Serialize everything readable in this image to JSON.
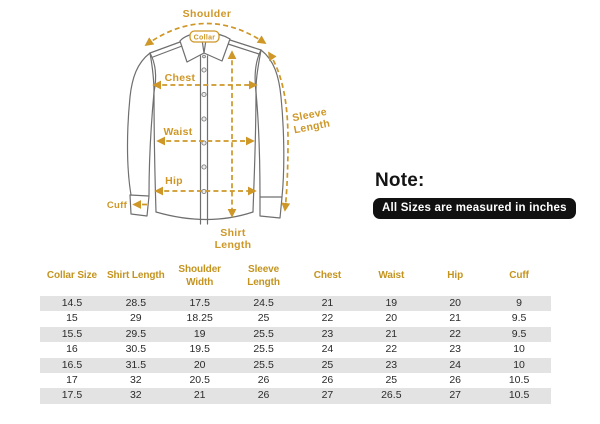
{
  "theme": {
    "accent_gold": "#CE9727",
    "table_header_gold": "#C4941F",
    "row_alt_bg": "#E3E3E3",
    "note_badge_bg": "#111111",
    "outline_gray": "#6F6F6F",
    "cell_text": "#2B2B2B",
    "note_text": "#141414"
  },
  "diagram": {
    "labels": {
      "shoulder": "Shoulder",
      "collar": "Collar",
      "chest": "Chest",
      "waist": "Waist",
      "hip": "Hip",
      "cuff": "Cuff",
      "shirt_length_line1": "Shirt",
      "shirt_length_line2": "Length",
      "sleeve_length_line1": "Sleeve",
      "sleeve_length_line2": "Length"
    }
  },
  "note": {
    "title": "Note:",
    "badge": "All Sizes are measured in inches"
  },
  "size_table": {
    "columns": [
      "Collar Size",
      "Shirt Length",
      "Shoulder Width",
      "Sleeve Length",
      "Chest",
      "Waist",
      "Hip",
      "Cuff"
    ],
    "rows": [
      [
        "14.5",
        "28.5",
        "17.5",
        "24.5",
        "21",
        "19",
        "20",
        "9"
      ],
      [
        "15",
        "29",
        "18.25",
        "25",
        "22",
        "20",
        "21",
        "9.5"
      ],
      [
        "15.5",
        "29.5",
        "19",
        "25.5",
        "23",
        "21",
        "22",
        "9.5"
      ],
      [
        "16",
        "30.5",
        "19.5",
        "25.5",
        "24",
        "22",
        "23",
        "10"
      ],
      [
        "16.5",
        "31.5",
        "20",
        "25.5",
        "25",
        "23",
        "24",
        "10"
      ],
      [
        "17",
        "32",
        "20.5",
        "26",
        "26",
        "25",
        "26",
        "10.5"
      ],
      [
        "17.5",
        "32",
        "21",
        "26",
        "27",
        "26.5",
        "27",
        "10.5"
      ]
    ]
  }
}
